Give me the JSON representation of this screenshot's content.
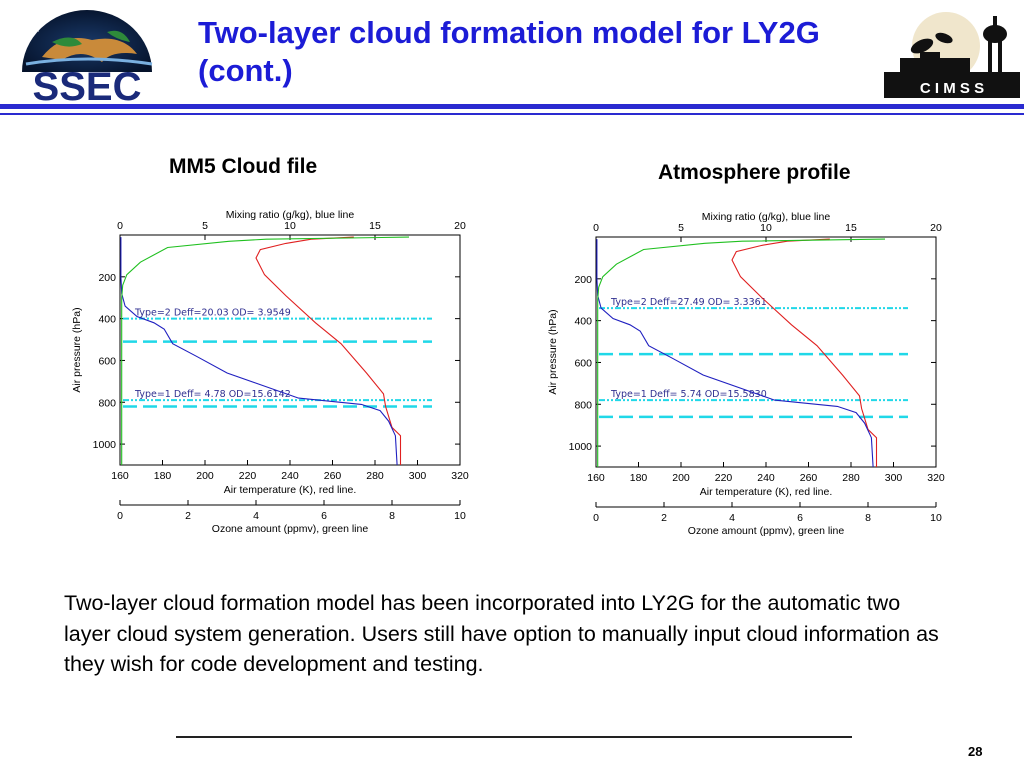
{
  "slide": {
    "title_line1": "Two-layer cloud formation model for LY2G",
    "title_line2": "(cont.)",
    "body": "Two-layer cloud formation model has been incorporated into LY2G for the automatic two layer cloud system generation. Users still have option to manually input cloud information as they wish for code development and testing.",
    "page_number": "28",
    "logo_left_text": "SSEC",
    "logo_right_text": "C I M S S",
    "colors": {
      "title": "#1c1cd6",
      "rule": "#2a2ad0",
      "temperature_line": "#e02020",
      "mixing_ratio_line": "#2020c0",
      "ozone_line": "#20c020",
      "cloud_markers": "#20d8e8"
    }
  },
  "chart_data": [
    {
      "type": "line",
      "caption": "MM5 Cloud file",
      "ylabel": "Air pressure (hPa)",
      "ylim": [
        0,
        1100
      ],
      "y_inverted": true,
      "yticks": [
        200,
        400,
        600,
        800,
        1000
      ],
      "top_axis": {
        "label": "Mixing ratio (g/kg), blue line",
        "range": [
          0,
          20
        ],
        "ticks": [
          0,
          5,
          10,
          15,
          20
        ]
      },
      "bottom_axis": {
        "label": "Air temperature (K), red line.",
        "range": [
          160,
          320
        ],
        "ticks": [
          160,
          180,
          200,
          220,
          240,
          260,
          280,
          300,
          320
        ]
      },
      "ozone_axis": {
        "label": "Ozone amount (ppmv), green line",
        "range": [
          0,
          10
        ],
        "ticks": [
          0,
          2,
          4,
          6,
          8,
          10
        ]
      },
      "series": [
        {
          "name": "Air temperature (K), red line.",
          "color": "#e02020",
          "x": [
            270,
            250,
            238,
            226,
            224,
            228,
            238,
            252,
            264,
            276,
            284,
            285,
            288,
            292,
            292
          ],
          "y": [
            10,
            20,
            40,
            70,
            110,
            190,
            290,
            420,
            520,
            660,
            760,
            820,
            920,
            960,
            1100
          ]
        },
        {
          "name": "Mixing ratio (g/kg), blue line",
          "color": "#2020c0",
          "x": [
            0.05,
            0.05,
            0.1,
            0.3,
            1.0,
            2.0,
            2.6,
            3.1,
            4.5,
            6.3,
            10.5,
            14.2,
            15.3,
            15.8,
            16.2,
            16.3
          ],
          "y": [
            10,
            200,
            280,
            340,
            390,
            420,
            450,
            520,
            580,
            660,
            780,
            810,
            840,
            890,
            960,
            1100
          ]
        },
        {
          "name": "Ozone amount (ppmv), green line",
          "color": "#20c020",
          "x": [
            8.5,
            4.3,
            3.2,
            1.4,
            0.6,
            0.2,
            0.08,
            0.05,
            0.05,
            0.05
          ],
          "y": [
            10,
            20,
            30,
            60,
            130,
            190,
            240,
            300,
            600,
            1100
          ]
        }
      ],
      "cloud_layers": [
        {
          "label": "Type=2  Deff=20.03  OD=  3.9549",
          "top": 400,
          "bottom": 510
        },
        {
          "label": "Type=1  Deff=  4.78  OD=15.6142",
          "top": 790,
          "bottom": 820
        }
      ]
    },
    {
      "type": "line",
      "caption": "Atmosphere profile",
      "ylabel": "Air pressure (hPa)",
      "ylim": [
        0,
        1100
      ],
      "y_inverted": true,
      "yticks": [
        200,
        400,
        600,
        800,
        1000
      ],
      "top_axis": {
        "label": "Mixing ratio (g/kg), blue line",
        "range": [
          0,
          20
        ],
        "ticks": [
          0,
          5,
          10,
          15,
          20
        ]
      },
      "bottom_axis": {
        "label": "Air temperature (K), red line.",
        "range": [
          160,
          320
        ],
        "ticks": [
          160,
          180,
          200,
          220,
          240,
          260,
          280,
          300,
          320
        ]
      },
      "ozone_axis": {
        "label": "Ozone amount (ppmv), green line",
        "range": [
          0,
          10
        ],
        "ticks": [
          0,
          2,
          4,
          6,
          8,
          10
        ]
      },
      "series": [
        {
          "name": "Air temperature (K), red line.",
          "color": "#e02020",
          "x": [
            270,
            250,
            238,
            226,
            224,
            228,
            238,
            252,
            264,
            276,
            284,
            285,
            288,
            292,
            292
          ],
          "y": [
            10,
            20,
            40,
            70,
            110,
            190,
            290,
            420,
            520,
            660,
            760,
            820,
            920,
            960,
            1100
          ]
        },
        {
          "name": "Mixing ratio (g/kg), blue line",
          "color": "#2020c0",
          "x": [
            0.05,
            0.05,
            0.1,
            0.3,
            1.0,
            2.0,
            2.6,
            3.1,
            4.5,
            6.3,
            10.5,
            14.2,
            15.3,
            15.8,
            16.2,
            16.3
          ],
          "y": [
            10,
            200,
            280,
            340,
            390,
            420,
            450,
            520,
            580,
            660,
            780,
            810,
            840,
            890,
            960,
            1100
          ]
        },
        {
          "name": "Ozone amount (ppmv), green line",
          "color": "#20c020",
          "x": [
            8.5,
            4.3,
            3.2,
            1.4,
            0.6,
            0.2,
            0.08,
            0.05,
            0.05,
            0.05
          ],
          "y": [
            10,
            20,
            30,
            60,
            130,
            190,
            240,
            300,
            600,
            1100
          ]
        }
      ],
      "cloud_layers": [
        {
          "label": "Type=2  Deff=27.49  OD=  3.3361",
          "top": 340,
          "bottom": 560
        },
        {
          "label": "Type=1  Deff=  5.74  OD=15.5830",
          "top": 780,
          "bottom": 860
        }
      ]
    }
  ]
}
